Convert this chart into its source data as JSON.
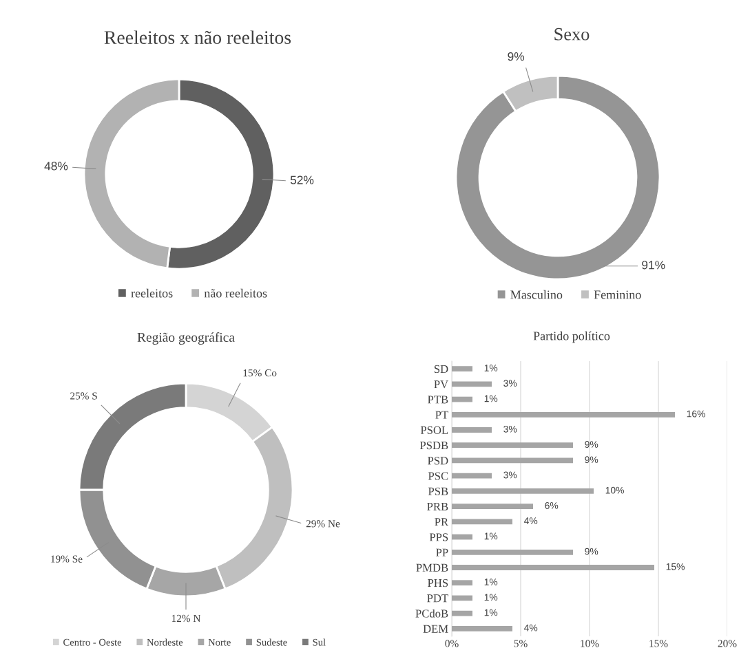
{
  "chart_data": [
    {
      "type": "donut",
      "title": "Reeleitos x não reeleitos",
      "categories": [
        "reeleitos",
        "não reeleitos"
      ],
      "values": [
        52,
        48
      ],
      "colors": [
        "#606060",
        "#b2b2b2"
      ],
      "value_labels": [
        "52%",
        "48%"
      ],
      "legend": "bottom"
    },
    {
      "type": "donut",
      "title": "Sexo",
      "categories": [
        "Masculino",
        "Feminino"
      ],
      "values": [
        91,
        9
      ],
      "colors": [
        "#959595",
        "#c0c0c0"
      ],
      "value_labels": [
        "91%",
        "9%"
      ],
      "legend": "bottom"
    },
    {
      "type": "donut",
      "title": "Região geográfica",
      "categories": [
        "Centro - Oeste",
        "Nordeste",
        "Norte",
        "Sudeste",
        "Sul"
      ],
      "values": [
        15,
        29,
        12,
        19,
        25
      ],
      "colors": [
        "#d4d4d4",
        "#bfbfbf",
        "#a6a6a6",
        "#919191",
        "#7a7a7a"
      ],
      "value_labels": [
        "15% Co",
        "29% Ne",
        "12% N",
        "19% Se",
        "25% S"
      ],
      "legend": "bottom"
    },
    {
      "type": "bar",
      "orientation": "horizontal",
      "title": "Partido político",
      "categories": [
        "SD",
        "PV",
        "PTB",
        "PT",
        "PSOL",
        "PSDB",
        "PSD",
        "PSC",
        "PSB",
        "PRB",
        "PR",
        "PPS",
        "PP",
        "PMDB",
        "PHS",
        "PDT",
        "PCdoB",
        "DEM"
      ],
      "values": [
        1.5,
        2.9,
        1.5,
        16.2,
        2.9,
        8.8,
        8.8,
        2.9,
        10.3,
        5.9,
        4.4,
        1.5,
        8.8,
        14.7,
        1.5,
        1.5,
        1.5,
        4.4
      ],
      "value_labels": [
        "1%",
        "3%",
        "1%",
        "16%",
        "3%",
        "9%",
        "9%",
        "3%",
        "10%",
        "6%",
        "4%",
        "1%",
        "9%",
        "15%",
        "1%",
        "1%",
        "1%",
        "4%"
      ],
      "color": "#a5a5a5",
      "xlim": [
        0,
        20
      ],
      "xticks": [
        {
          "value": 0,
          "label": "0%"
        },
        {
          "value": 5,
          "label": "5%"
        },
        {
          "value": 10,
          "label": "10%"
        },
        {
          "value": 15,
          "label": "15%"
        },
        {
          "value": 20,
          "label": "20%"
        }
      ],
      "grid": "x"
    }
  ]
}
